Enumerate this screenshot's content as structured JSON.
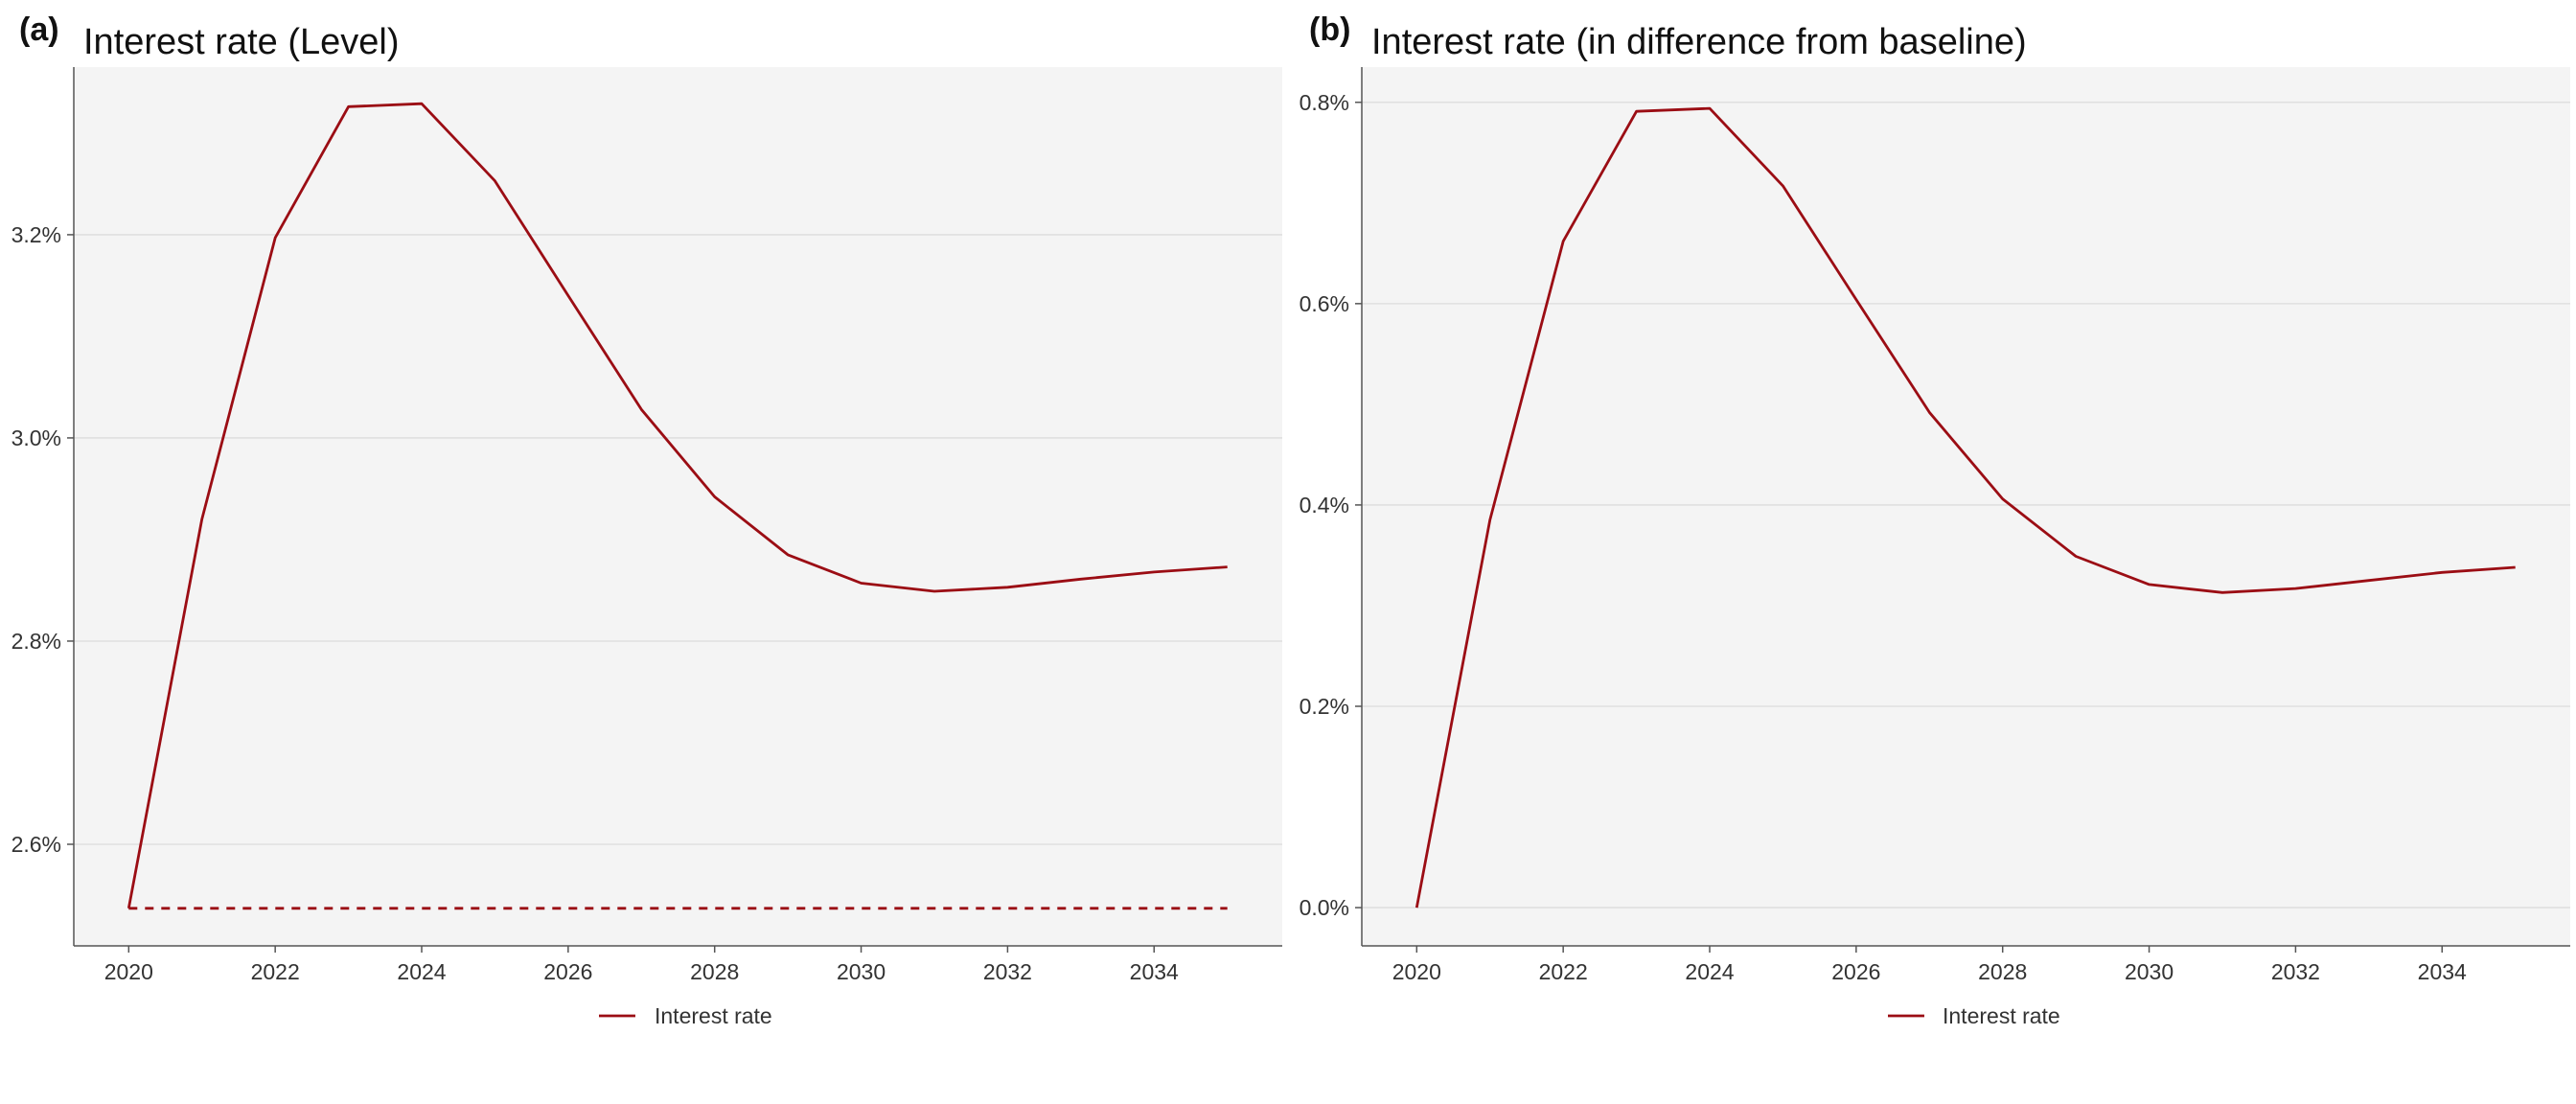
{
  "chart_data": [
    {
      "type": "line",
      "panel_label": "(a)",
      "title": "Interest rate (Level)",
      "xlabel": "",
      "ylabel": "",
      "x": [
        2020,
        2021,
        2022,
        2023,
        2024,
        2025,
        2026,
        2027,
        2028,
        2029,
        2030,
        2031,
        2032,
        2033,
        2034,
        2035
      ],
      "series": [
        {
          "name": "Interest rate",
          "style": "solid",
          "color": "#9b0d14",
          "values": [
            2.537,
            2.92,
            3.197,
            3.326,
            3.329,
            3.253,
            3.14,
            3.028,
            2.942,
            2.885,
            2.857,
            2.849,
            2.853,
            2.861,
            2.868,
            2.873
          ]
        },
        {
          "name": "",
          "style": "dashed",
          "color": "#9b0d14",
          "values": [
            2.537,
            2.537,
            2.537,
            2.537,
            2.537,
            2.537,
            2.537,
            2.537,
            2.537,
            2.537,
            2.537,
            2.537,
            2.537,
            2.537,
            2.537,
            2.537
          ]
        }
      ],
      "xlim": [
        2019.25,
        2035.75
      ],
      "ylim": [
        2.5,
        3.365
      ],
      "xticks": [
        2020,
        2022,
        2024,
        2026,
        2028,
        2030,
        2032,
        2034
      ],
      "xtick_labels": [
        "2020",
        "2022",
        "2024",
        "2026",
        "2028",
        "2030",
        "2032",
        "2034"
      ],
      "yticks": [
        2.6,
        2.8,
        3.0,
        3.2
      ],
      "ytick_labels": [
        "2.6%",
        "2.8%",
        "3.0%",
        "3.2%"
      ],
      "grid": "horizontal",
      "legend": {
        "position": "bottom",
        "entries": [
          "Interest rate"
        ]
      }
    },
    {
      "type": "line",
      "panel_label": "(b)",
      "title": "Interest rate (in difference from baseline)",
      "xlabel": "",
      "ylabel": "",
      "x": [
        2020,
        2021,
        2022,
        2023,
        2024,
        2025,
        2026,
        2027,
        2028,
        2029,
        2030,
        2031,
        2032,
        2033,
        2034,
        2035
      ],
      "series": [
        {
          "name": "Interest rate",
          "style": "solid",
          "color": "#9b0d14",
          "values": [
            0.0,
            0.385,
            0.662,
            0.791,
            0.794,
            0.717,
            0.604,
            0.492,
            0.406,
            0.349,
            0.321,
            0.313,
            0.317,
            0.325,
            0.333,
            0.338
          ]
        }
      ],
      "xlim": [
        2019.25,
        2035.75
      ],
      "ylim": [
        -0.038,
        0.835
      ],
      "xticks": [
        2020,
        2022,
        2024,
        2026,
        2028,
        2030,
        2032,
        2034
      ],
      "xtick_labels": [
        "2020",
        "2022",
        "2024",
        "2026",
        "2028",
        "2030",
        "2032",
        "2034"
      ],
      "yticks": [
        0.0,
        0.2,
        0.4,
        0.6,
        0.8
      ],
      "ytick_labels": [
        "0.0%",
        "0.2%",
        "0.4%",
        "0.6%",
        "0.8%"
      ],
      "grid": "horizontal",
      "legend": {
        "position": "bottom",
        "entries": [
          "Interest rate"
        ]
      }
    }
  ]
}
